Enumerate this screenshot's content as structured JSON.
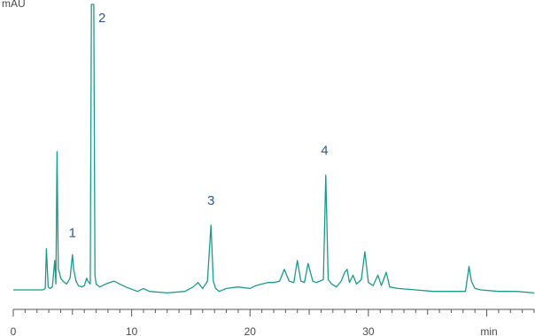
{
  "chart_data": {
    "type": "line",
    "title": "",
    "xlabel": "min",
    "ylabel": "mAU",
    "xlim": [
      0,
      44
    ],
    "ylim": [
      0,
      100
    ],
    "x_ticks": [
      0,
      10,
      20,
      30
    ],
    "x_tick_labels": [
      "0",
      "10",
      "20",
      "30"
    ],
    "series": [
      {
        "color": "#1a9a8a",
        "x": [
          0,
          2.5,
          2.7,
          2.8,
          2.95,
          3.1,
          3.3,
          3.5,
          3.6,
          3.7,
          3.8,
          3.9,
          4.0,
          4.2,
          4.5,
          4.8,
          5.0,
          5.1,
          5.3,
          5.5,
          5.8,
          6.0,
          6.2,
          6.3,
          6.5,
          6.6,
          6.8,
          6.9,
          7.0,
          7.3,
          7.8,
          8.5,
          9.0,
          9.5,
          10.5,
          11.0,
          11.5,
          13,
          14.5,
          15.2,
          15.6,
          16.0,
          16.4,
          16.7,
          16.9,
          17.1,
          17.4,
          18,
          19,
          20,
          20.5,
          21,
          21.5,
          22,
          22.5,
          22.9,
          23.3,
          23.7,
          24.0,
          24.3,
          24.6,
          24.9,
          25.3,
          25.6,
          25.9,
          26.2,
          26.4,
          26.6,
          26.9,
          27.3,
          27.7,
          28.0,
          28.2,
          28.4,
          28.7,
          29.0,
          29.4,
          29.7,
          30.0,
          30.4,
          30.8,
          31.1,
          31.5,
          31.8,
          32.5,
          34,
          35.5,
          37,
          38.2,
          38.5,
          38.7,
          39.0,
          39.5,
          41,
          42.5,
          44
        ],
        "y": [
          3,
          3,
          3.5,
          17,
          4,
          3.5,
          4,
          13,
          5,
          50,
          10,
          9,
          7,
          6,
          5,
          7,
          15,
          10,
          6,
          4.5,
          4,
          4.5,
          7,
          6,
          5,
          100,
          100,
          8,
          5,
          4,
          5,
          6,
          5,
          4,
          2.5,
          3.5,
          2.5,
          2,
          2.5,
          4,
          5.5,
          3.5,
          6,
          25,
          6,
          3.5,
          2.5,
          3.5,
          4,
          3.5,
          4.5,
          5,
          5.5,
          5.5,
          6,
          10,
          6,
          5.5,
          13,
          6,
          5.5,
          12,
          6,
          5.5,
          6,
          6.5,
          42,
          6.5,
          5,
          4,
          6,
          9,
          10,
          5.5,
          8,
          5,
          6.5,
          16,
          5.5,
          4.5,
          8,
          4.5,
          9,
          4,
          3.5,
          3,
          2.5,
          2.5,
          2.5,
          11,
          6,
          3.5,
          3,
          2.5,
          2.5,
          2
        ]
      }
    ],
    "peak_labels": [
      {
        "text": "1",
        "x": 5.0,
        "y": 21
      },
      {
        "text": "2",
        "x": 7.5,
        "y": 94
      },
      {
        "text": "3",
        "x": 16.7,
        "y": 32
      },
      {
        "text": "4",
        "x": 26.3,
        "y": 49
      }
    ],
    "grid": false,
    "legend": "none"
  }
}
